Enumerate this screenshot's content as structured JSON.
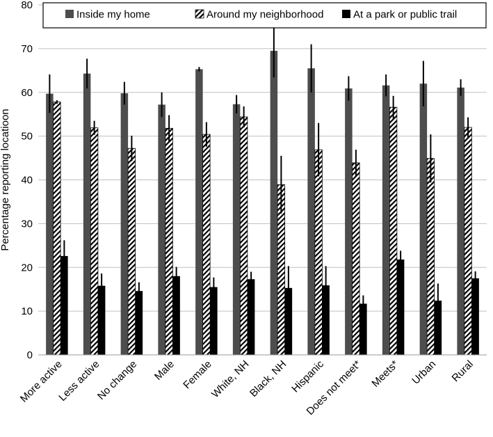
{
  "chart_data": {
    "type": "bar",
    "title": "",
    "xlabel": "",
    "ylabel": "Percentage reporting locatioon",
    "ylim": [
      0,
      80
    ],
    "yticks": [
      0,
      10,
      20,
      30,
      40,
      50,
      60,
      70,
      80
    ],
    "grid": true,
    "legend_position": "top",
    "categories": [
      "More active",
      "Less active",
      "No change",
      "Male",
      "Female",
      "White, NH",
      "Black, NH",
      "Hispanic",
      "Does not meet*",
      "Meets*",
      "Urban",
      "Rural"
    ],
    "series": [
      {
        "name": "Inside my home",
        "style": "solid-dark-gray",
        "color": "#4d4d4d",
        "values": [
          59.7,
          64.3,
          59.8,
          57.2,
          65.3,
          57.3,
          69.5,
          65.5,
          60.9,
          61.6,
          62.0,
          61.1
        ],
        "error_low": [
          55.3,
          60.9,
          57.2,
          54.4,
          64.8,
          55.2,
          63.4,
          60.0,
          58.1,
          59.1,
          56.8,
          59.2
        ],
        "error_high": [
          64.1,
          67.7,
          62.4,
          60.0,
          65.8,
          59.4,
          75.6,
          71.0,
          63.7,
          64.1,
          67.2,
          63.0
        ]
      },
      {
        "name": "Around my neighborhood",
        "style": "diagonal-hatch",
        "color": "#000000",
        "values": [
          57.8,
          51.9,
          47.2,
          51.8,
          50.4,
          54.4,
          38.9,
          46.9,
          43.9,
          56.6,
          44.9,
          52.0
        ],
        "error_low": [
          57.4,
          50.3,
          44.3,
          48.8,
          47.6,
          52.0,
          32.3,
          40.8,
          40.9,
          54.0,
          39.4,
          49.7
        ],
        "error_high": [
          58.2,
          53.5,
          50.1,
          54.8,
          53.2,
          56.8,
          45.5,
          53.0,
          46.9,
          59.2,
          50.4,
          54.3
        ]
      },
      {
        "name": "At a park or public trail",
        "style": "solid-black",
        "color": "#000000",
        "values": [
          22.6,
          15.8,
          14.6,
          18.0,
          15.5,
          17.3,
          15.3,
          15.9,
          11.7,
          21.8,
          12.4,
          17.5
        ],
        "error_low": [
          19.0,
          13.0,
          12.6,
          15.9,
          13.3,
          15.6,
          10.3,
          11.5,
          9.8,
          19.8,
          8.5,
          15.9
        ],
        "error_high": [
          26.2,
          18.6,
          16.6,
          20.1,
          17.7,
          19.0,
          20.3,
          20.3,
          13.6,
          23.8,
          16.3,
          19.1
        ]
      }
    ]
  }
}
